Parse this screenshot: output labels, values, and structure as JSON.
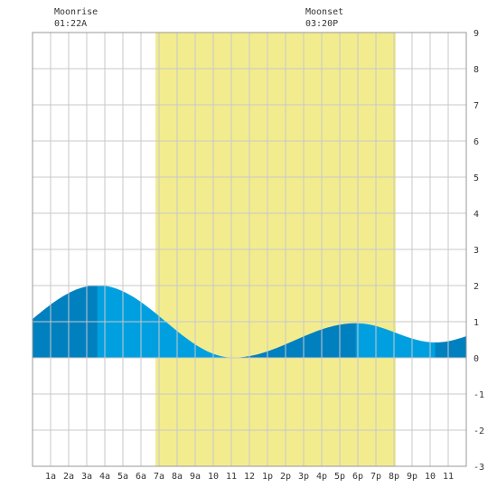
{
  "chart_data": {
    "type": "area",
    "x_unit": "hour of day",
    "xlim": [
      0,
      24
    ],
    "ylim": [
      -3,
      9
    ],
    "y_ticks": [
      -3,
      -2,
      -1,
      0,
      1,
      2,
      3,
      4,
      5,
      6,
      7,
      8,
      9
    ],
    "x_tick_labels": [
      "1a",
      "2a",
      "3a",
      "4a",
      "5a",
      "6a",
      "7a",
      "8a",
      "9a",
      "10",
      "11",
      "12",
      "1p",
      "2p",
      "3p",
      "4p",
      "5p",
      "6p",
      "7p",
      "8p",
      "9p",
      "10",
      "11"
    ],
    "grid": true,
    "daylight": {
      "start": 6.8,
      "end": 20.1,
      "color": "#f2ec8f"
    },
    "moon": [
      {
        "label": "Moonrise",
        "time": "01:22A",
        "hour": 1.37
      },
      {
        "label": "Moonset",
        "time": "03:20P",
        "hour": 15.33
      }
    ],
    "extrema": [
      {
        "kind": "high",
        "hour": 3.6,
        "height": 2.0
      },
      {
        "kind": "low",
        "hour": 11.1,
        "height": 0.0
      },
      {
        "kind": "high",
        "hour": 17.9,
        "height": 0.95
      },
      {
        "kind": "low",
        "hour": 22.3,
        "height": 0.42
      }
    ],
    "start_height": 1.1,
    "end_height": 0.75,
    "colors": {
      "dark": "#0080bf",
      "light": "#00a0e0",
      "grid": "#c8c8c8",
      "border": "#999999"
    }
  }
}
